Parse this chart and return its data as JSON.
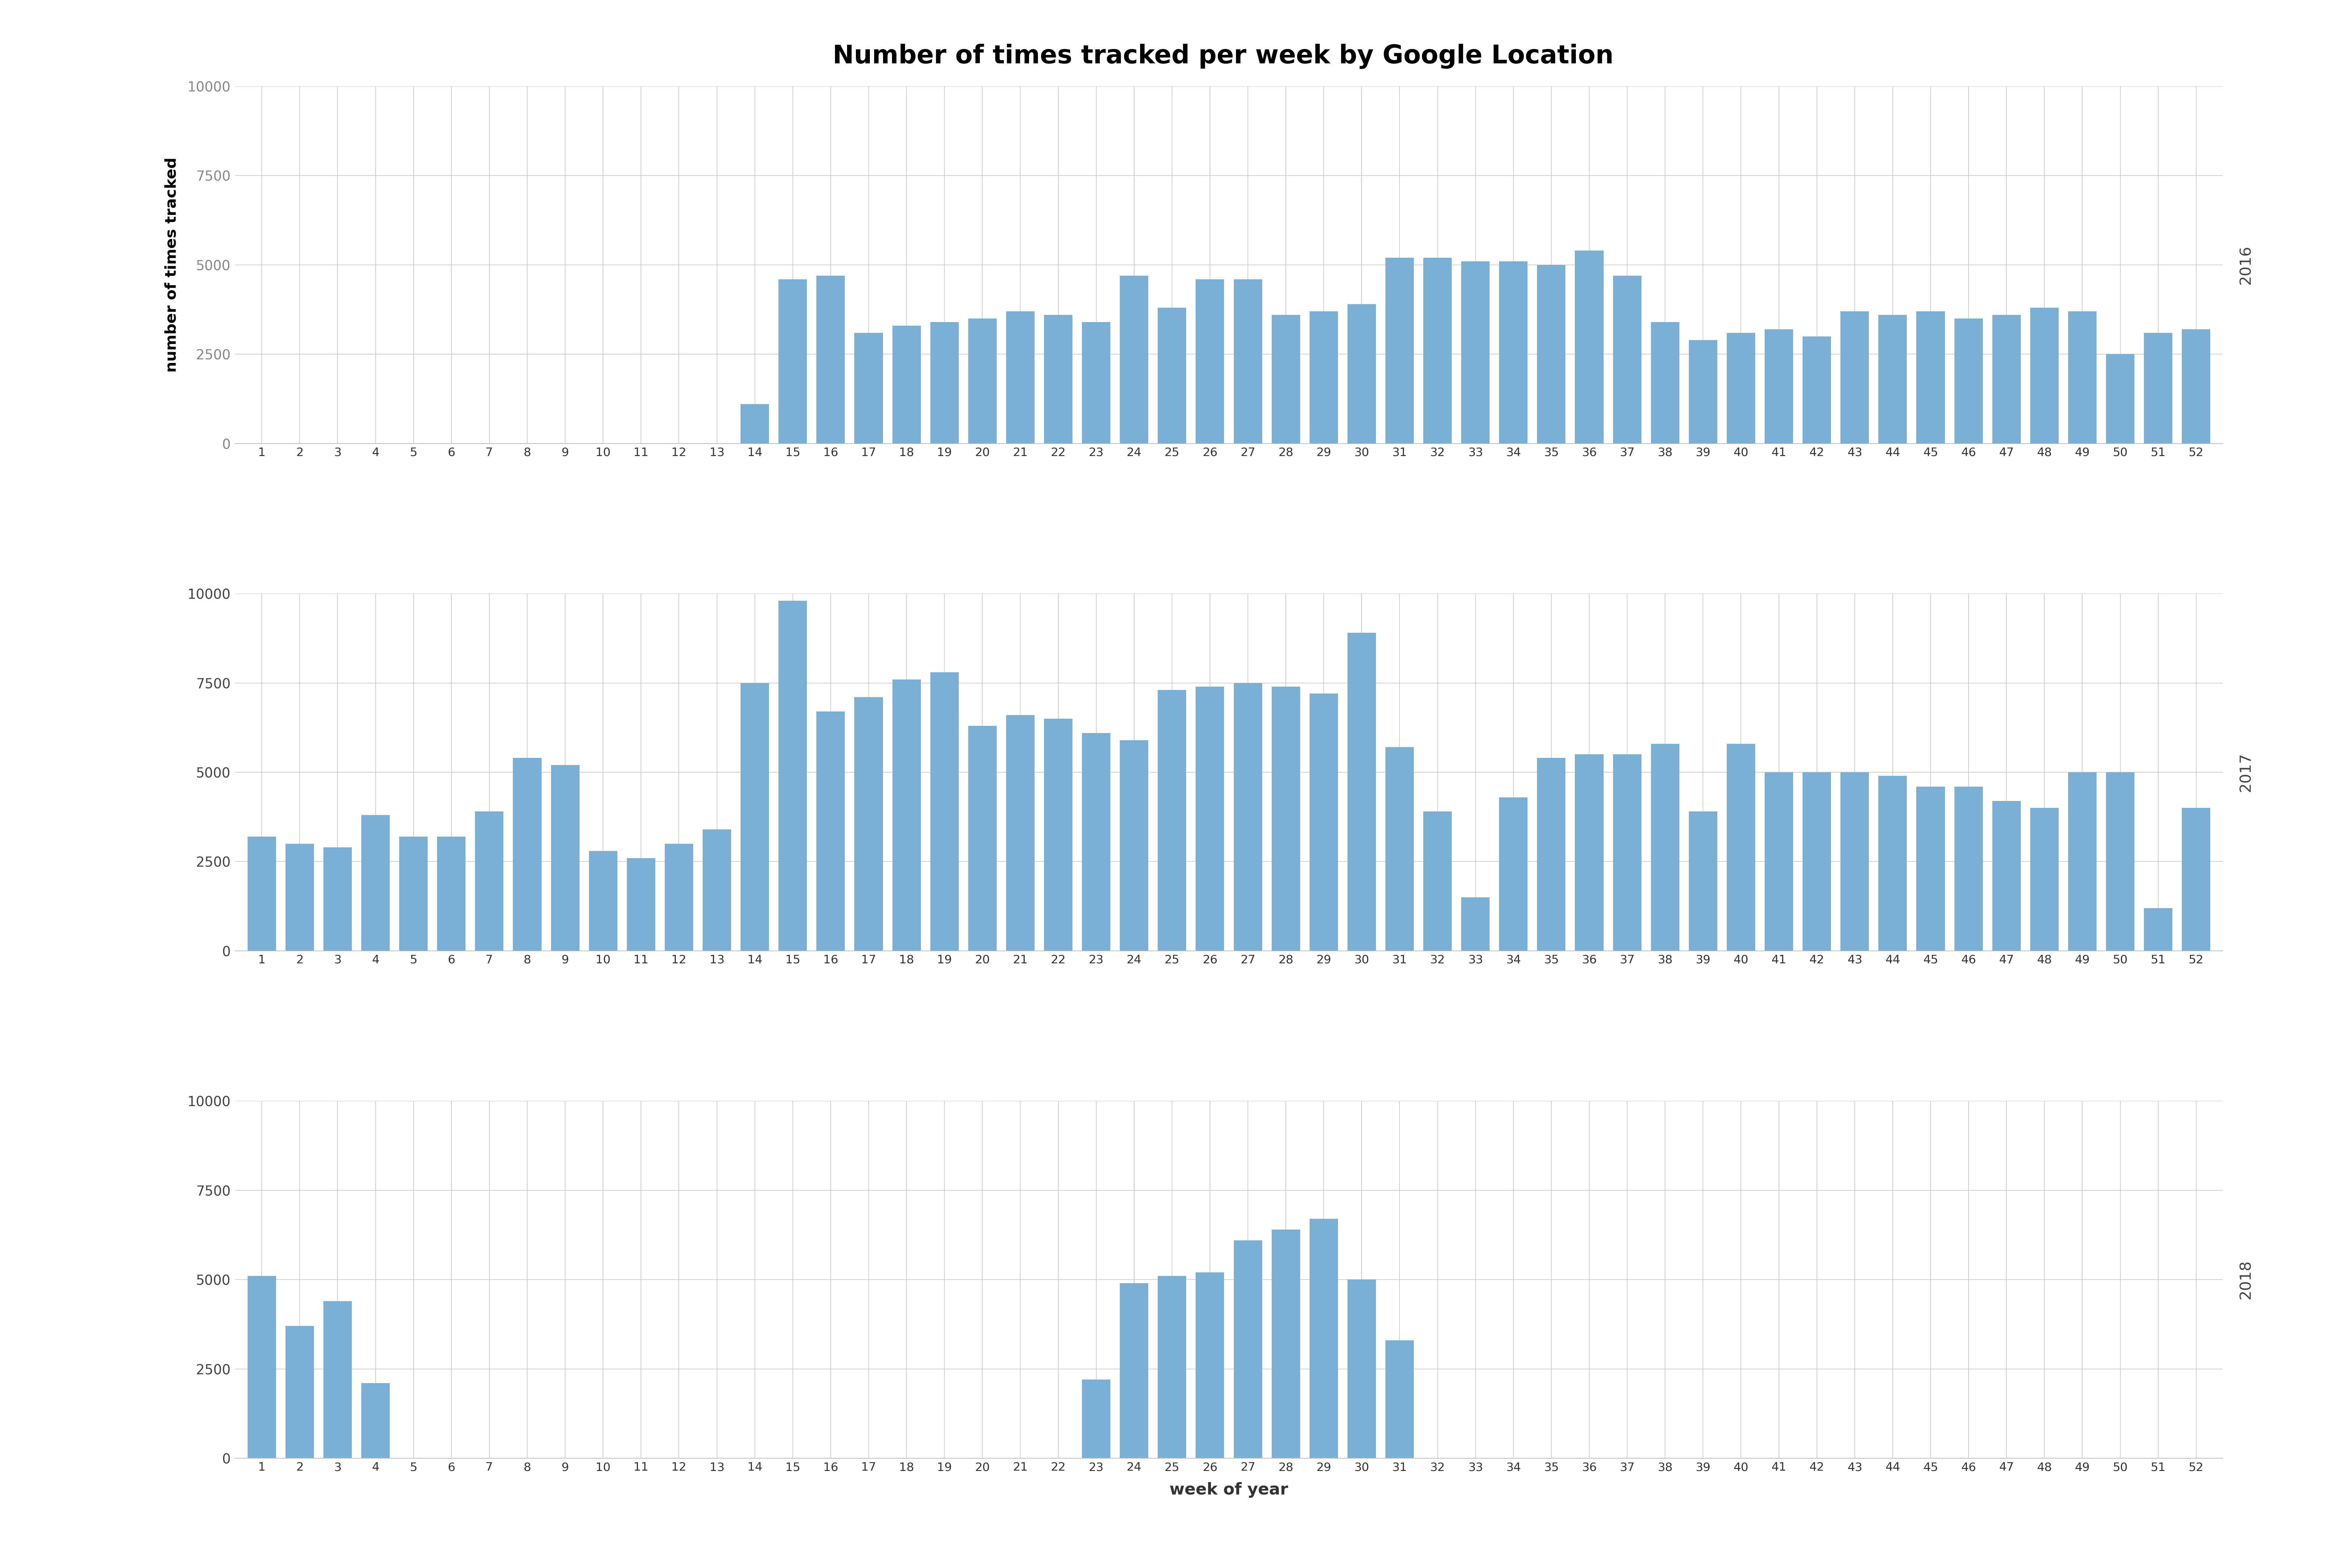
{
  "title": "Number of times tracked per week by Google Location",
  "ylabel": "number of times tracked",
  "xlabel": "week of year",
  "bar_color": "#7bafd4",
  "background_color": "#ffffff",
  "grid_color": "#cccccc",
  "ylim": [
    0,
    10000
  ],
  "yticks": [
    0,
    2500,
    5000,
    7500,
    10000
  ],
  "years": [
    "2016",
    "2017",
    "2018"
  ],
  "data": {
    "2016": {
      "weeks": [
        14,
        15,
        16,
        17,
        18,
        19,
        20,
        21,
        22,
        23,
        24,
        25,
        26,
        27,
        28,
        29,
        30,
        31,
        32,
        33,
        34,
        35,
        36,
        37,
        38,
        39,
        40,
        41,
        42,
        43,
        44,
        45,
        46,
        47,
        48,
        49,
        50,
        51,
        52
      ],
      "values": [
        1100,
        4600,
        4700,
        3100,
        3300,
        3400,
        3500,
        3700,
        3600,
        3400,
        4700,
        3800,
        4600,
        4600,
        3600,
        3700,
        3900,
        5200,
        5200,
        5100,
        5100,
        5000,
        5400,
        4700,
        3400,
        2900,
        3100,
        3200,
        3000,
        3700,
        3600,
        3700,
        3500,
        3600,
        3800,
        3700,
        2500,
        3100,
        3200
      ]
    },
    "2017": {
      "weeks": [
        1,
        2,
        3,
        4,
        5,
        6,
        7,
        8,
        9,
        10,
        11,
        12,
        13,
        14,
        15,
        16,
        17,
        18,
        19,
        20,
        21,
        22,
        23,
        24,
        25,
        26,
        27,
        28,
        29,
        30,
        31,
        32,
        33,
        34,
        35,
        36,
        37,
        38,
        39,
        40,
        41,
        42,
        43,
        44,
        45,
        46,
        47,
        48,
        49,
        50,
        51,
        52
      ],
      "values": [
        3200,
        3000,
        2900,
        3800,
        3200,
        3200,
        3900,
        5400,
        5200,
        2800,
        2600,
        3000,
        3400,
        7500,
        9800,
        6700,
        7100,
        7600,
        7800,
        6300,
        6600,
        6500,
        6100,
        5900,
        7300,
        7400,
        7500,
        7400,
        7200,
        8900,
        5700,
        3900,
        1500,
        4300,
        5400,
        5500,
        5500,
        5800,
        3900,
        5800,
        5000,
        5000,
        5000,
        4900,
        4600,
        4600,
        4200,
        4000,
        5000,
        5000,
        1200,
        4000
      ]
    },
    "2018": {
      "weeks": [
        1,
        2,
        3,
        4,
        23,
        24,
        25,
        26,
        27,
        28,
        29,
        30,
        31
      ],
      "values": [
        5100,
        3700,
        4400,
        2100,
        2200,
        4900,
        5100,
        5200,
        6100,
        6400,
        6700,
        5000,
        3300
      ]
    }
  }
}
